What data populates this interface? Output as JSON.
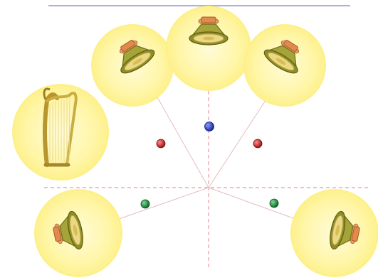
{
  "colors": {
    "background": "#ffffff",
    "top_line": "#7a7ad8",
    "guide_dashed": "#e89aa4",
    "ray": "#e4b8bc",
    "halo_center": "#fffbd0",
    "halo_edge": "#fdf18a",
    "speaker_body": "#9a9a30",
    "speaker_cone": "#e6d27a",
    "speaker_magnet": "#e08a4c",
    "harp_frame": "#c6a93a",
    "marker_blue": "#2233bb",
    "marker_red": "#cc2222",
    "marker_green": "#1f8a3a"
  },
  "diagram": {
    "sources": [
      {
        "name": "speaker-front-left",
        "kind": "speaker-icon"
      },
      {
        "name": "speaker-front-center",
        "kind": "speaker-icon"
      },
      {
        "name": "speaker-front-right",
        "kind": "speaker-icon"
      },
      {
        "name": "speaker-rear-left",
        "kind": "speaker-icon"
      },
      {
        "name": "speaker-rear-right",
        "kind": "speaker-icon"
      },
      {
        "name": "harp",
        "kind": "harp-icon"
      }
    ],
    "markers": [
      {
        "name": "marker-center",
        "color": "blue"
      },
      {
        "name": "marker-front-left",
        "color": "red"
      },
      {
        "name": "marker-front-right",
        "color": "red"
      },
      {
        "name": "marker-rear-left",
        "color": "green"
      },
      {
        "name": "marker-rear-right",
        "color": "green"
      }
    ]
  }
}
